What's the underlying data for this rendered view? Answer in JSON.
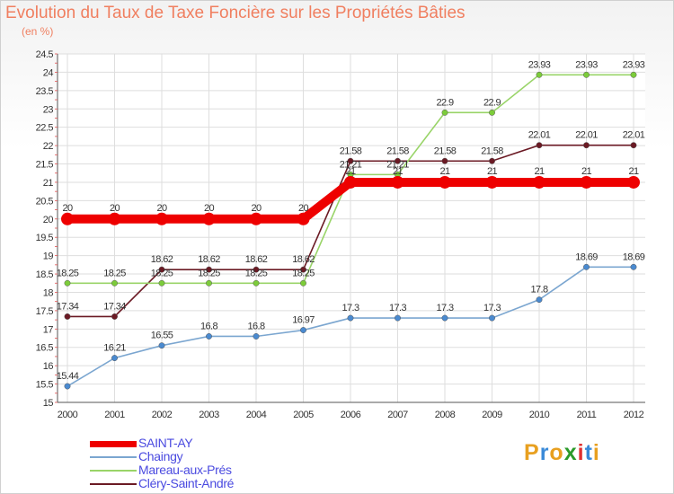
{
  "title": "Evolution du Taux de Taxe Foncière sur les Propriétés Bâties",
  "unit": "(en %)",
  "logo": {
    "letters": [
      "P",
      "r",
      "o",
      "x",
      "i",
      "t",
      "i"
    ],
    "colors": [
      "#e8a020",
      "#3a8ad8",
      "#e8a020",
      "#2a9a2a",
      "#e03030",
      "#3a8ad8",
      "#e8a020"
    ]
  },
  "chart_data": {
    "type": "line",
    "title": "Evolution du Taux de Taxe Foncière sur les Propriétés Bâties",
    "ylabel": "(en %)",
    "xlabel": "",
    "ylim": [
      15,
      24.5
    ],
    "yticks": [
      "15",
      "15.5",
      "16",
      "16.5",
      "17",
      "17.5",
      "18",
      "18.5",
      "19",
      "19.5",
      "20",
      "20.5",
      "21",
      "21.5",
      "22",
      "22.5",
      "23",
      "23.5",
      "24",
      "24.5"
    ],
    "categories": [
      "2000",
      "2001",
      "2002",
      "2003",
      "2004",
      "2005",
      "2006",
      "2007",
      "2008",
      "2009",
      "2010",
      "2011",
      "2012"
    ],
    "series": [
      {
        "name": "Cléry-Saint-André",
        "color": "#6b1a24",
        "marker": "#6b1a24",
        "values": [
          17.34,
          17.34,
          18.62,
          18.62,
          18.62,
          18.62,
          21.58,
          21.58,
          21.58,
          21.58,
          22.01,
          22.01,
          22.01
        ],
        "labels": [
          "17.34",
          "17.34",
          "18.62",
          "18.62",
          "18.62",
          "18.62",
          "21.58",
          "21.58",
          "21.58",
          "21.58",
          "22.01",
          "22.01",
          "22.01"
        ]
      },
      {
        "name": "Mareau-aux-Prés",
        "color": "#99d468",
        "marker": "#7ccc3a",
        "values": [
          18.25,
          18.25,
          18.25,
          18.25,
          18.25,
          18.25,
          21.21,
          21.21,
          22.9,
          22.9,
          23.93,
          23.93,
          23.93
        ],
        "labels": [
          "18.25",
          "18.25",
          "18.25",
          "18.25",
          "18.25",
          "18.25",
          "21.21",
          "21.21",
          "22.9",
          "22.9",
          "23.93",
          "23.93",
          "23.93"
        ]
      },
      {
        "name": "Chaingy",
        "color": "#7ba6d0",
        "marker": "#4a8ad0",
        "values": [
          15.44,
          16.21,
          16.55,
          16.8,
          16.8,
          16.97,
          17.3,
          17.3,
          17.3,
          17.3,
          17.8,
          18.69,
          18.69
        ],
        "labels": [
          "15.44",
          "16.21",
          "16.55",
          "16.8",
          "16.8",
          "16.97",
          "17.3",
          "17.3",
          "17.3",
          "17.3",
          "17.8",
          "18.69",
          "18.69"
        ]
      },
      {
        "name": "SAINT-AY",
        "color": "#ee0000",
        "marker": "#ee0000",
        "thick": true,
        "values": [
          20,
          20,
          20,
          20,
          20,
          20,
          21,
          21,
          21,
          21,
          21,
          21,
          21
        ],
        "labels": [
          "20",
          "20",
          "20",
          "20",
          "20",
          "20",
          "21",
          "21",
          "21",
          "21",
          "21",
          "21",
          "21"
        ]
      }
    ],
    "legend": [
      "SAINT-AY",
      "Chaingy",
      "Mareau-aux-Prés",
      "Cléry-Saint-André"
    ]
  }
}
